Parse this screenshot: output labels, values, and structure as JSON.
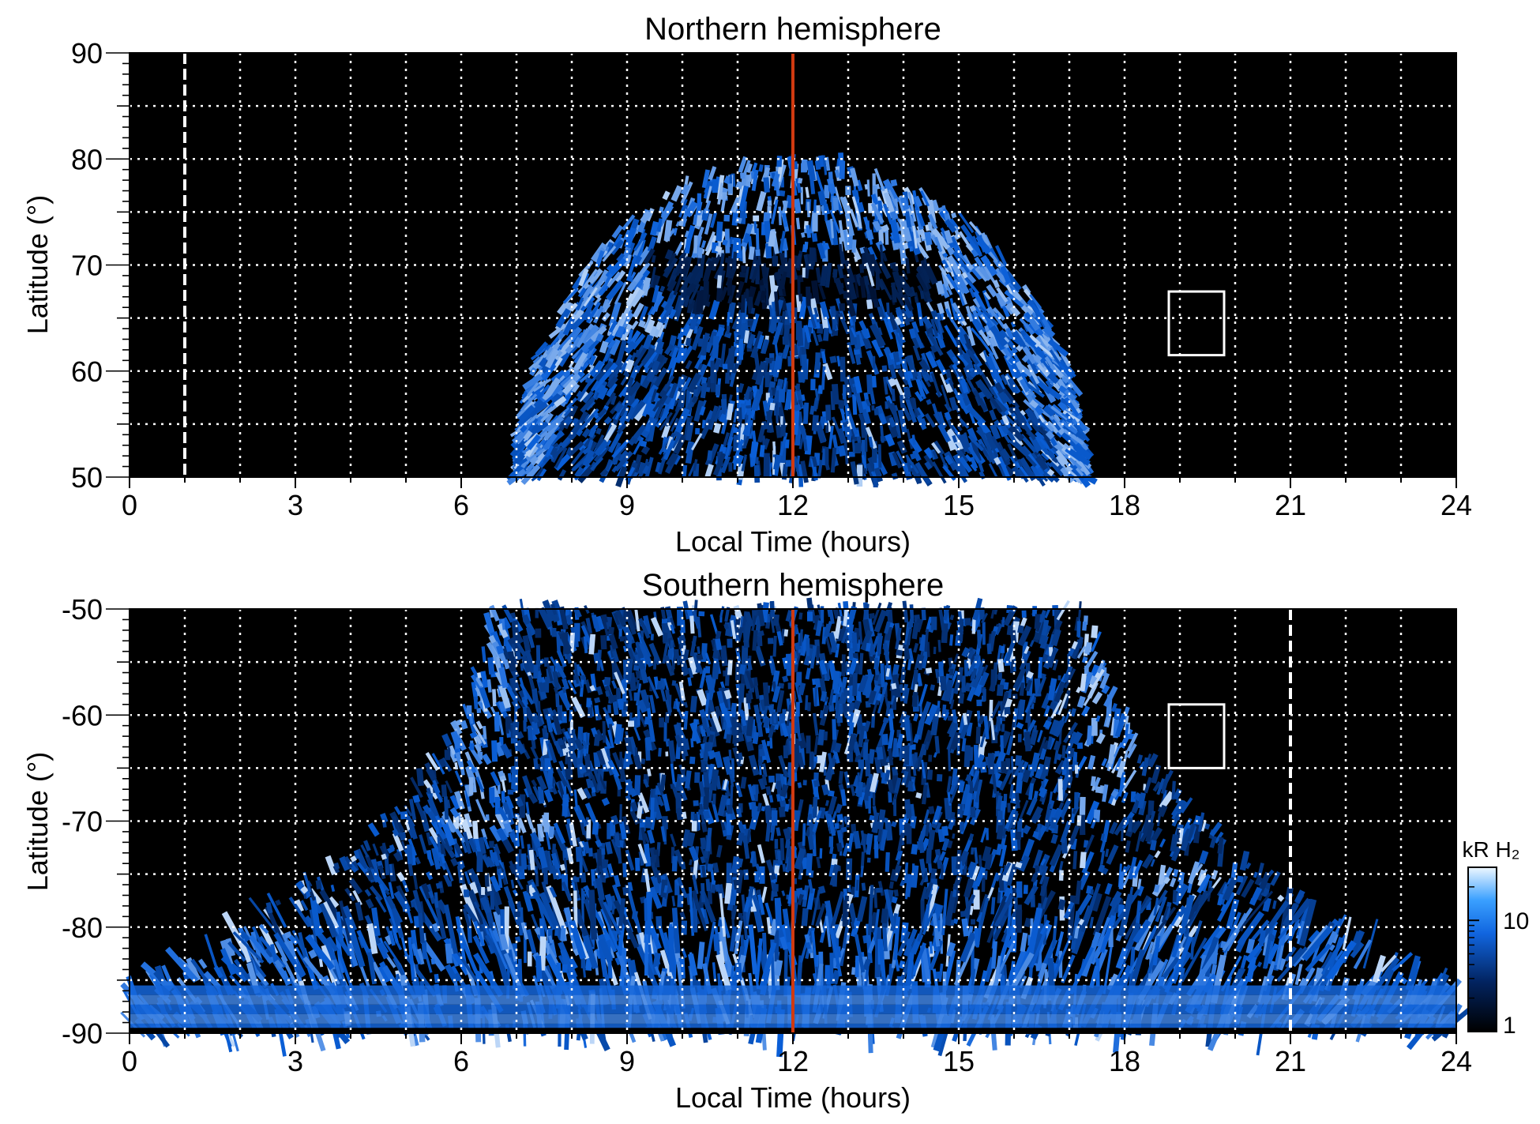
{
  "colors": {
    "background": "#000000",
    "emission_low": "#00122e",
    "emission_mid": "#0a5fd8",
    "emission_high": "#e8f4ff",
    "gridline": "#ffffff",
    "noon_line": "#d03a10",
    "box": "#ffffff",
    "text": "#000000"
  },
  "chart_data": [
    {
      "type": "heatmap",
      "title": "Northern hemisphere",
      "xlabel": "Local Time (hours)",
      "ylabel": "Latitude (°)",
      "xlim": [
        0,
        24
      ],
      "ylim": [
        50,
        90
      ],
      "x_ticks": [
        0,
        3,
        6,
        9,
        12,
        15,
        18,
        21,
        24
      ],
      "x_tick_labels": [
        "0",
        "3",
        "6",
        "9",
        "12",
        "15",
        "18",
        "21",
        "24"
      ],
      "y_ticks": [
        50,
        60,
        70,
        80,
        90
      ],
      "y_tick_labels": [
        "50",
        "60",
        "70",
        "80",
        "90"
      ],
      "grid": true,
      "grid_x_step": 1,
      "grid_y_step": 5,
      "noon_line_x": 12,
      "dashed_meridian_x": 1,
      "box": {
        "x": [
          18.8,
          19.8
        ],
        "y": [
          61.5,
          67.5
        ]
      },
      "coverage": {
        "lt_range": [
          7,
          17.3
        ],
        "max_latitude": 80
      },
      "bright_features": [
        {
          "lt": 9.0,
          "lat": 66.5,
          "level": 0.95
        },
        {
          "lt": 9.5,
          "lat": 64.0,
          "level": 0.9
        }
      ]
    },
    {
      "type": "heatmap",
      "title": "Southern hemisphere",
      "xlabel": "Local Time (hours)",
      "ylabel": "Latitude (°)",
      "xlim": [
        0,
        24
      ],
      "ylim": [
        -90,
        -50
      ],
      "x_ticks": [
        0,
        3,
        6,
        9,
        12,
        15,
        18,
        21,
        24
      ],
      "x_tick_labels": [
        "0",
        "3",
        "6",
        "9",
        "12",
        "15",
        "18",
        "21",
        "24"
      ],
      "y_ticks": [
        -90,
        -80,
        -70,
        -60,
        -50
      ],
      "y_tick_labels": [
        "-90",
        "-80",
        "-70",
        "-60",
        "-50"
      ],
      "grid": true,
      "grid_x_step": 1,
      "grid_y_step": 5,
      "noon_line_x": 12,
      "dashed_meridian_x": 21,
      "box": {
        "x": [
          18.8,
          19.8
        ],
        "y": [
          -65,
          -59
        ]
      },
      "bright_features": [
        {
          "lt": 6.2,
          "lat": -70.5,
          "level": 0.97
        },
        {
          "lt": 7.3,
          "lat": -70.5,
          "level": 0.9
        },
        {
          "lt": 18.5,
          "lat": -75.5,
          "level": 0.95
        },
        {
          "lt": 19.5,
          "lat": -75.0,
          "level": 0.85
        }
      ],
      "colorbar": {
        "label": "kR H₂",
        "scale": "log",
        "range": [
          1,
          30
        ],
        "ticks": [
          1,
          10
        ],
        "tick_labels": [
          "1",
          "10"
        ]
      }
    }
  ]
}
